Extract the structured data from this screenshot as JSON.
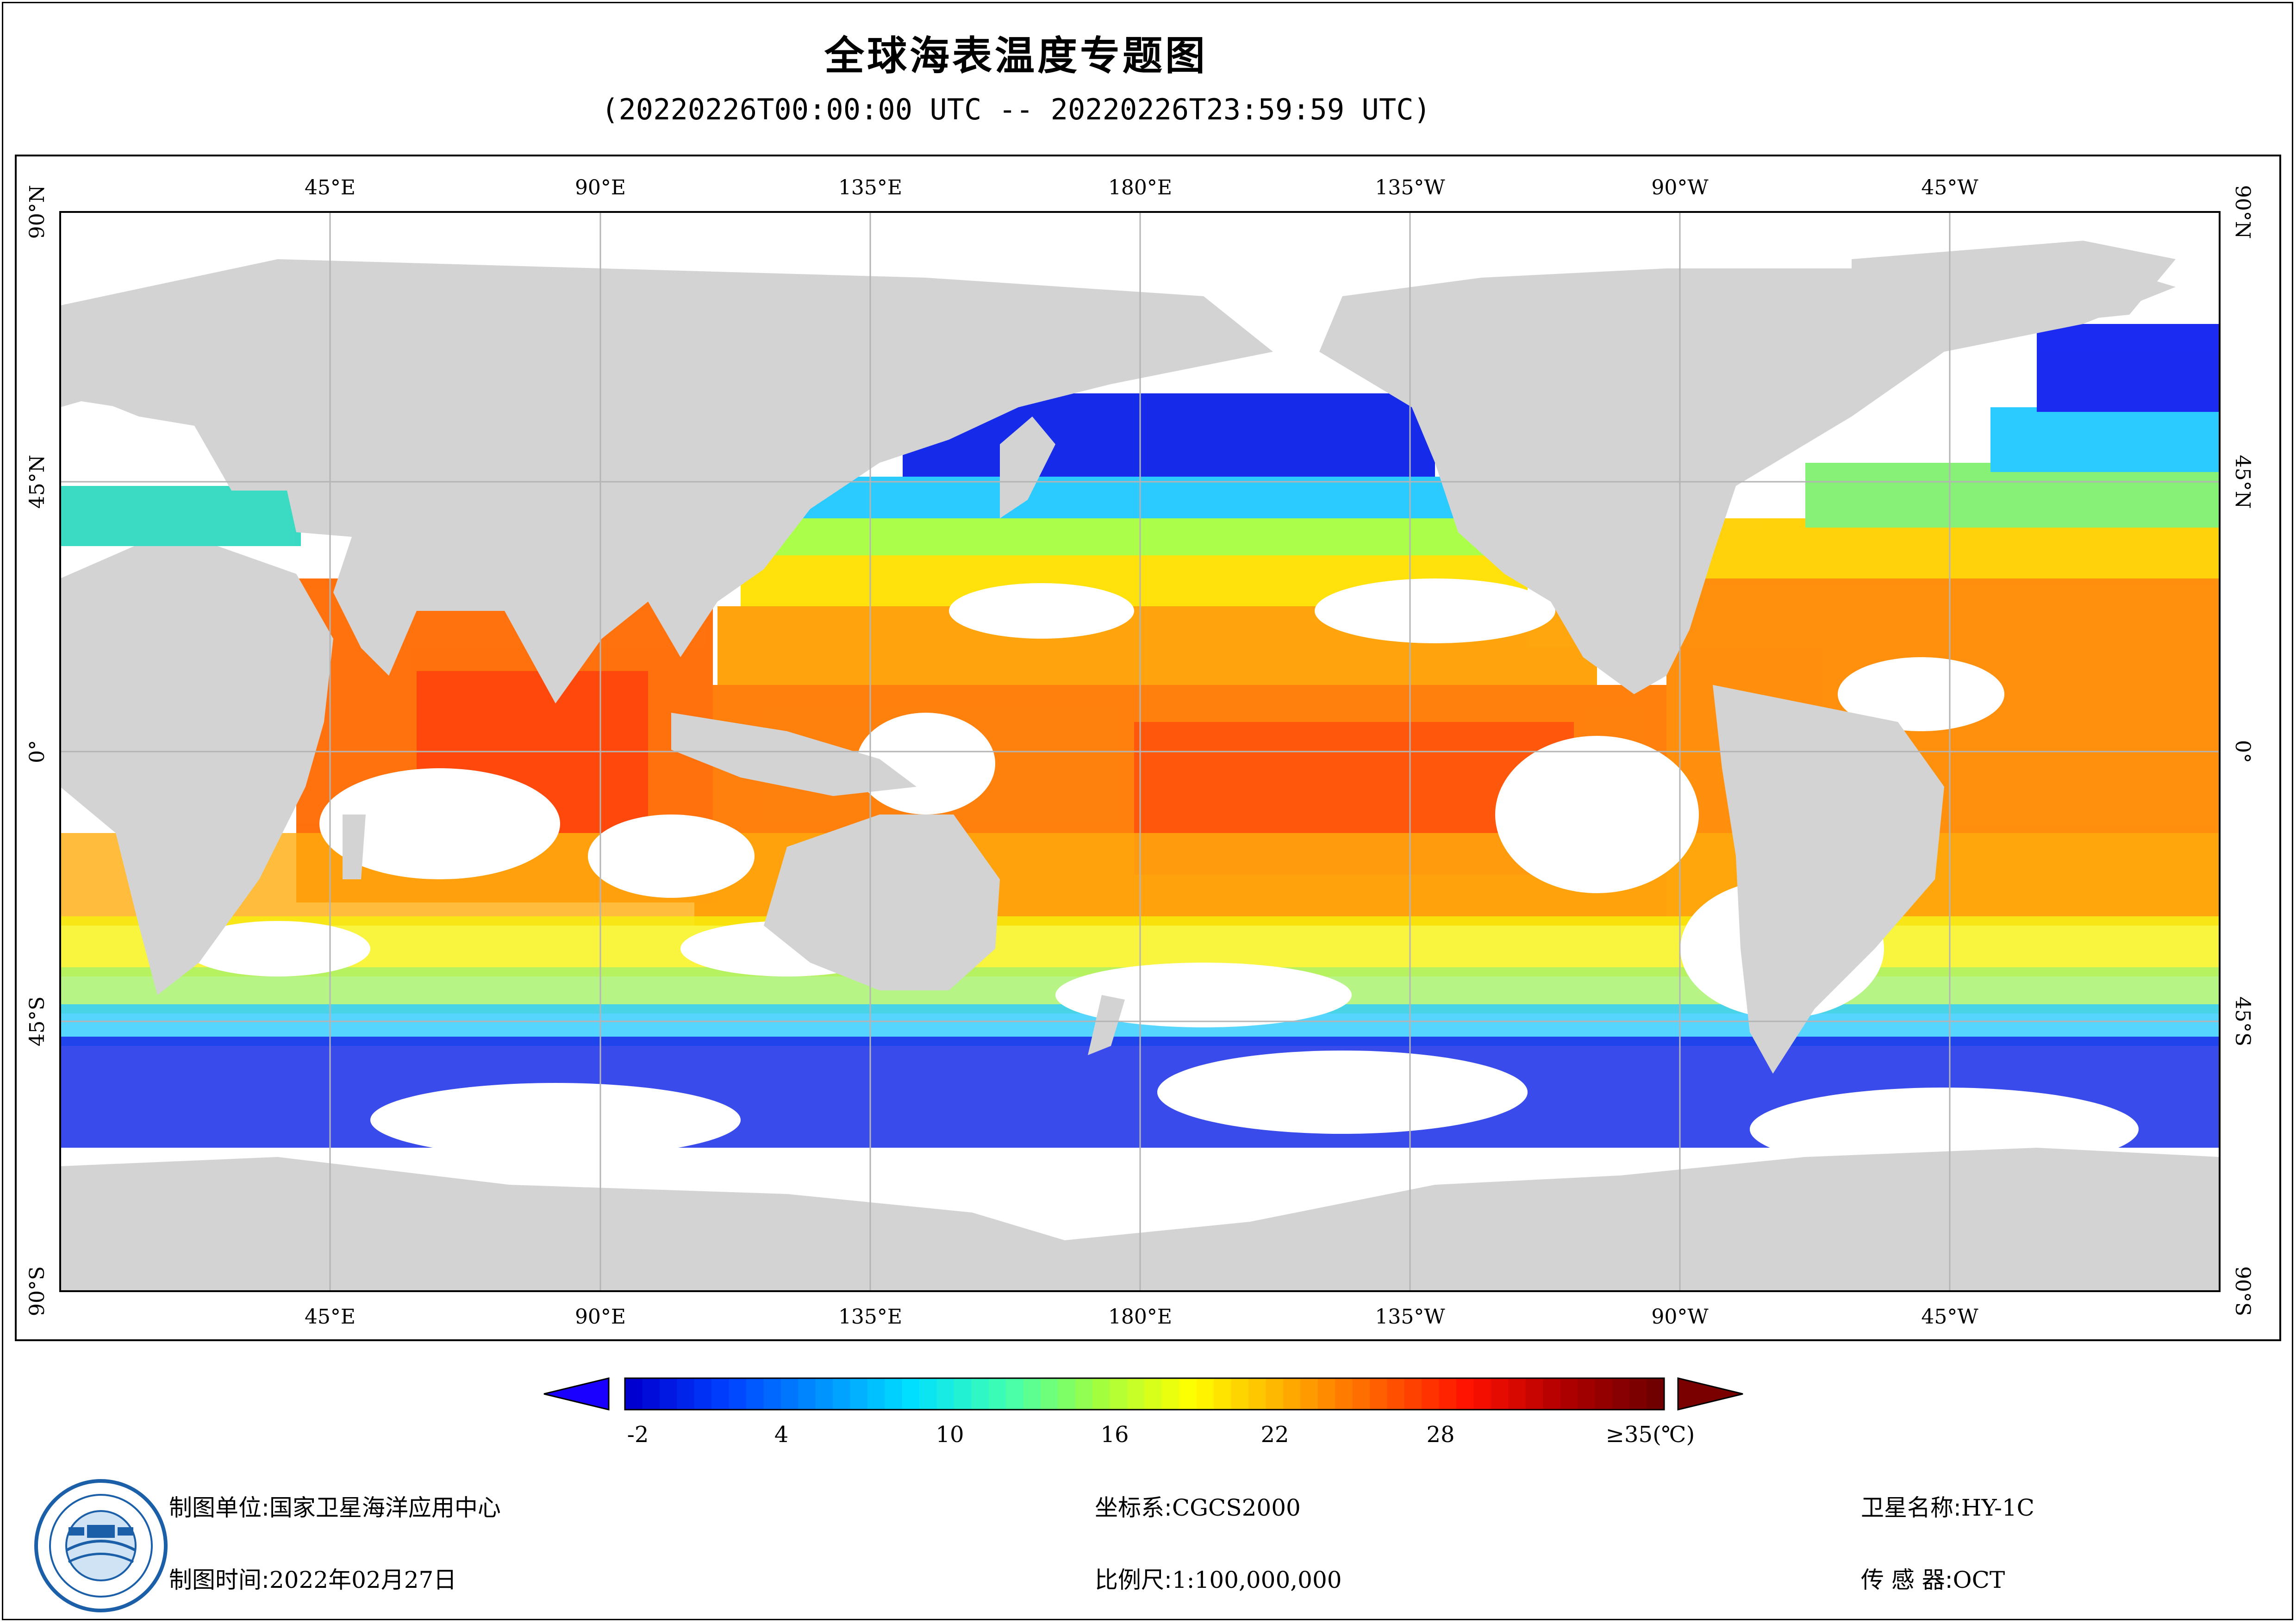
{
  "header": {
    "title": "全球海表温度专题图",
    "subtitle": "(20220226T00:00:00 UTC -- 20220226T23:59:59 UTC)"
  },
  "map": {
    "longitude_labels": [
      "45°E",
      "90°E",
      "135°E",
      "180°E",
      "135°W",
      "90°W",
      "45°W"
    ],
    "latitude_labels": [
      "90°N",
      "45°N",
      "0°",
      "45°S",
      "90°S"
    ],
    "colors": {
      "land": "#d3d3d3",
      "no_data": "#ffffff",
      "grid": "#b4b4b4"
    }
  },
  "colorbar": {
    "labels": [
      "-2",
      "4",
      "10",
      "16",
      "22",
      "28",
      "≥35(℃)"
    ],
    "min_arrow_color": "#1a00ff",
    "max_arrow_color": "#7a0000",
    "stops": [
      "#0000d0",
      "#0040ff",
      "#0090ff",
      "#00e0ff",
      "#40ffb0",
      "#a0ff40",
      "#ffff00",
      "#ffb000",
      "#ff6000",
      "#ff1000",
      "#b00000",
      "#700000"
    ]
  },
  "footer": {
    "unit_label": "制图单位:",
    "unit_value": "国家卫星海洋应用中心",
    "time_label": "制图时间:",
    "time_value": "2022年02月27日",
    "crs_label": "坐标系:",
    "crs_value": "CGCS2000",
    "scale_label": "比例尺:",
    "scale_value": "1:100,000,000",
    "satellite_label": "卫星名称:",
    "satellite_value": "HY-1C",
    "sensor_label": "传 感 器:",
    "sensor_value": "OCT"
  }
}
